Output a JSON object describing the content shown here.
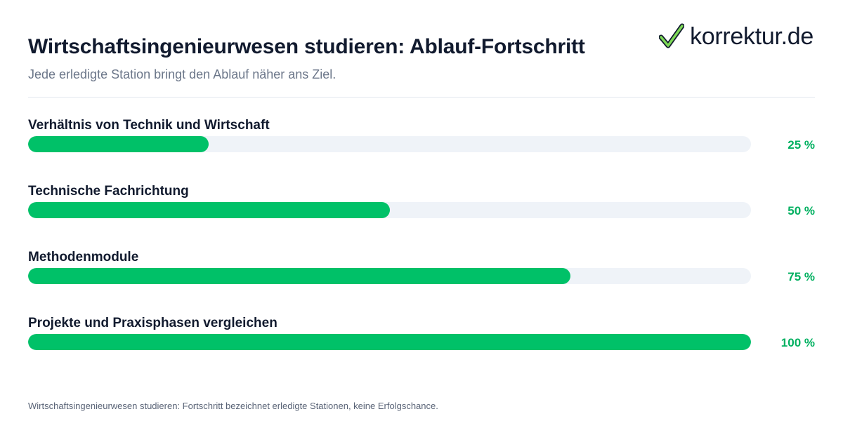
{
  "header": {
    "title": "Wirtschaftsingenieurwesen studieren: Ablauf-Fortschritt",
    "subtitle": "Jede erledigte Station bringt den Ablauf näher ans Ziel."
  },
  "logo": {
    "text": "korrektur.de",
    "icon": "checkmark-icon"
  },
  "colors": {
    "fill": "#00c168",
    "track": "#eff3f8",
    "percent_text": "#00b060",
    "title": "#111a2e",
    "subtitle": "#6b7689"
  },
  "chart_data": {
    "type": "bar",
    "orientation": "horizontal",
    "title": "Wirtschaftsingenieurwesen studieren: Ablauf-Fortschritt",
    "subtitle": "Jede erledigte Station bringt den Ablauf näher ans Ziel.",
    "categories": [
      "Verhältnis von Technik und Wirtschaft",
      "Technische Fachrichtung",
      "Methodenmodule",
      "Projekte und Praxisphasen vergleichen"
    ],
    "values": [
      25,
      50,
      75,
      100
    ],
    "value_labels": [
      "25 %",
      "50 %",
      "75 %",
      "100 %"
    ],
    "xlim": [
      0,
      100
    ],
    "grid": false
  },
  "footnote": "Wirtschaftsingenieurwesen studieren: Fortschritt bezeichnet erledigte Stationen, keine Erfolgschance."
}
